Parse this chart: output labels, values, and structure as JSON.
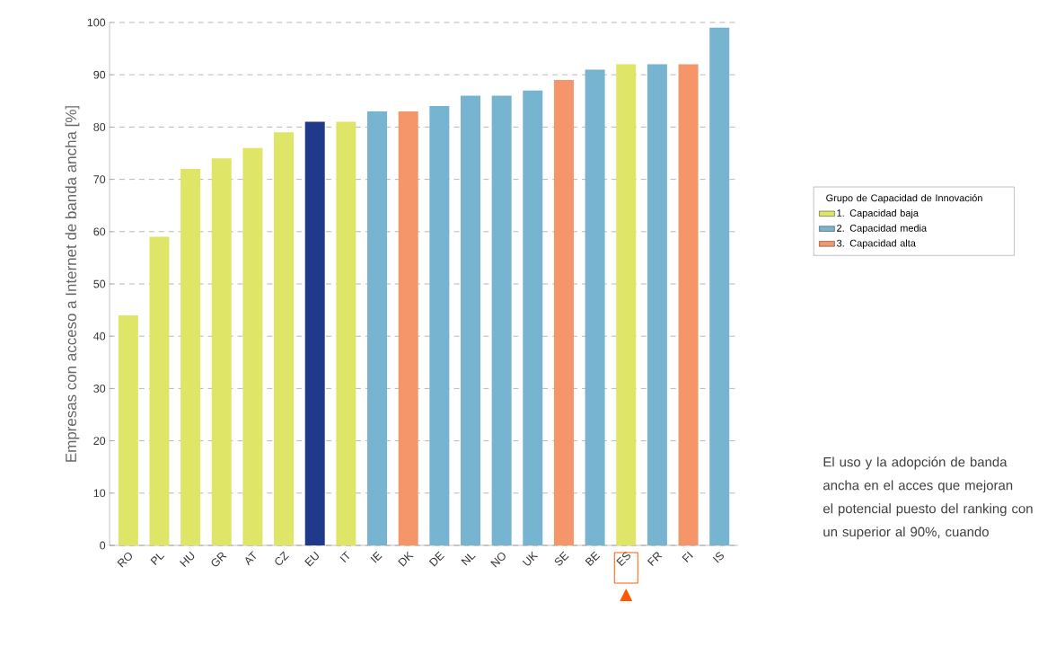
{
  "chart_data": {
    "type": "bar",
    "ylabel": "Empresas con acceso a Internet de banda ancha [%]",
    "legend_title": "Grupo de Capacidad de Innovación",
    "categories": [
      "RO",
      "PL",
      "HU",
      "GR",
      "AT",
      "CZ",
      "EU",
      "IT",
      "IE",
      "DK",
      "DE",
      "NL",
      "NO",
      "UK",
      "SE",
      "BE",
      "ES",
      "FR",
      "FI",
      "IS"
    ],
    "series": [
      {
        "name": "1. Capacidad baja",
        "color": "#dfe566",
        "values": [
          44,
          59,
          72,
          74,
          76,
          79,
          null,
          81,
          null,
          null,
          null,
          null,
          null,
          null,
          null,
          null,
          92,
          null,
          null,
          null
        ]
      },
      {
        "name": "2. Capacidad media",
        "color": "#77b4d0",
        "values": [
          null,
          null,
          null,
          null,
          null,
          null,
          null,
          null,
          83,
          null,
          84,
          86,
          86,
          87,
          null,
          91,
          null,
          92,
          null,
          99
        ]
      },
      {
        "name": "3. Capacidad alta",
        "color": "#f4956a",
        "values": [
          null,
          null,
          null,
          null,
          null,
          null,
          null,
          null,
          null,
          83,
          null,
          null,
          null,
          null,
          89,
          null,
          null,
          null,
          92,
          null
        ]
      },
      {
        "color": "#1f3a8a",
        "values": [
          null,
          null,
          null,
          null,
          null,
          null,
          81,
          null,
          null,
          null,
          null,
          null,
          null,
          null,
          null,
          null,
          null,
          null,
          null,
          null
        ]
      }
    ],
    "ylim": [
      0,
      100
    ],
    "yticks": [
      0,
      10,
      20,
      30,
      40,
      50,
      60,
      70,
      80,
      90,
      100
    ],
    "grid": "y",
    "legend": "right",
    "annotations": [
      "El uso y la adopción de banda ancha en el acces que mejoran el potencial puesto del ranking con un superior al 90%, cuando"
    ]
  }
}
